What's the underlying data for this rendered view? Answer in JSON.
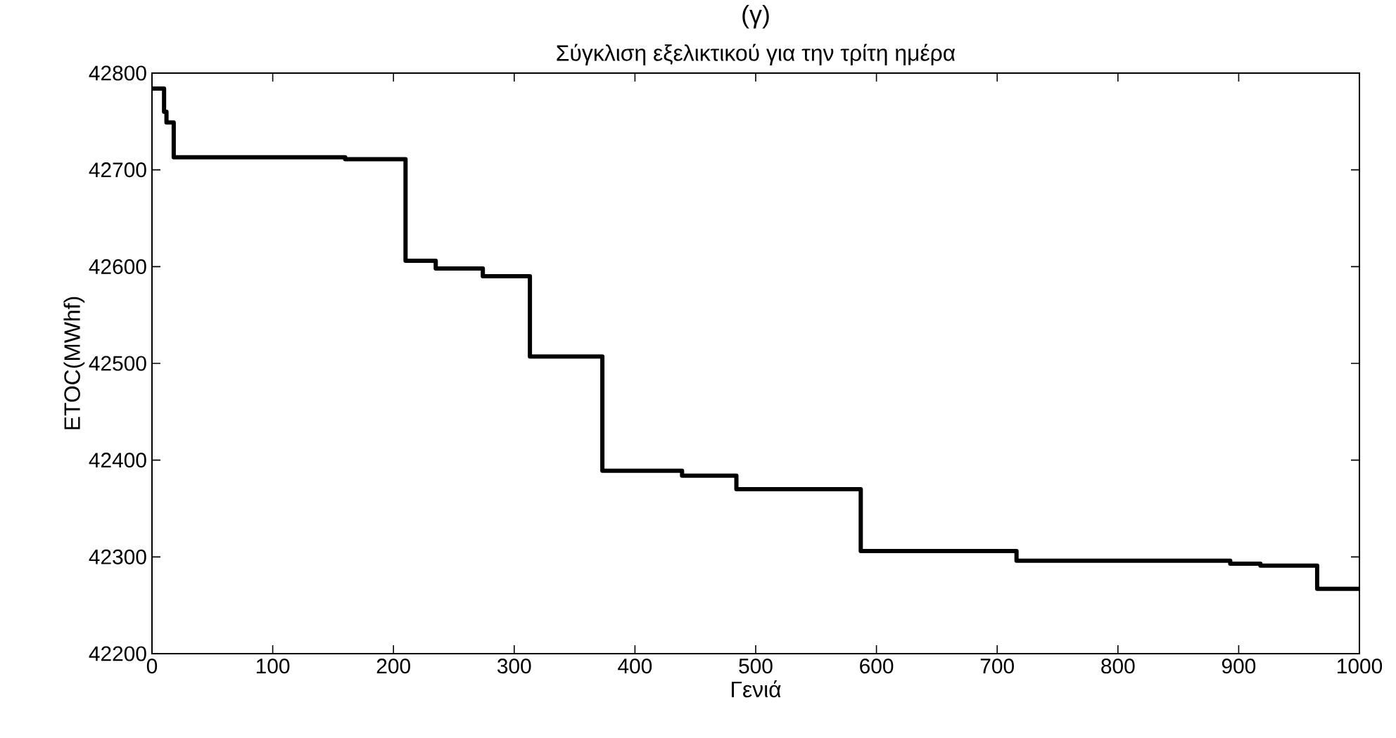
{
  "chart_data": {
    "type": "step",
    "title": "Σύγκλιση εξελικτικού για την τρίτη ημέρα",
    "xlabel": "Γενιά",
    "ylabel": "ETOC(MWhf)",
    "annotations": [
      "(γ)"
    ],
    "x": [
      0,
      10,
      12,
      18,
      160,
      210,
      235,
      274,
      313,
      373,
      439,
      484,
      587,
      716,
      893,
      918,
      965,
      1000
    ],
    "series": [
      {
        "color": "#000000",
        "values": [
          42784,
          42760,
          42749,
          42713,
          42711,
          42606,
          42598,
          42590,
          42507,
          42389,
          42384,
          42370,
          42306,
          42296,
          42293,
          42291,
          42267,
          42267
        ]
      }
    ],
    "xlim": [
      0,
      1000
    ],
    "xticks": [
      0,
      100,
      200,
      300,
      400,
      500,
      600,
      700,
      800,
      900,
      1000
    ],
    "ylim": [
      42200,
      42800
    ],
    "yticks": [
      42200,
      42300,
      42400,
      42500,
      42600,
      42700,
      42800
    ]
  }
}
